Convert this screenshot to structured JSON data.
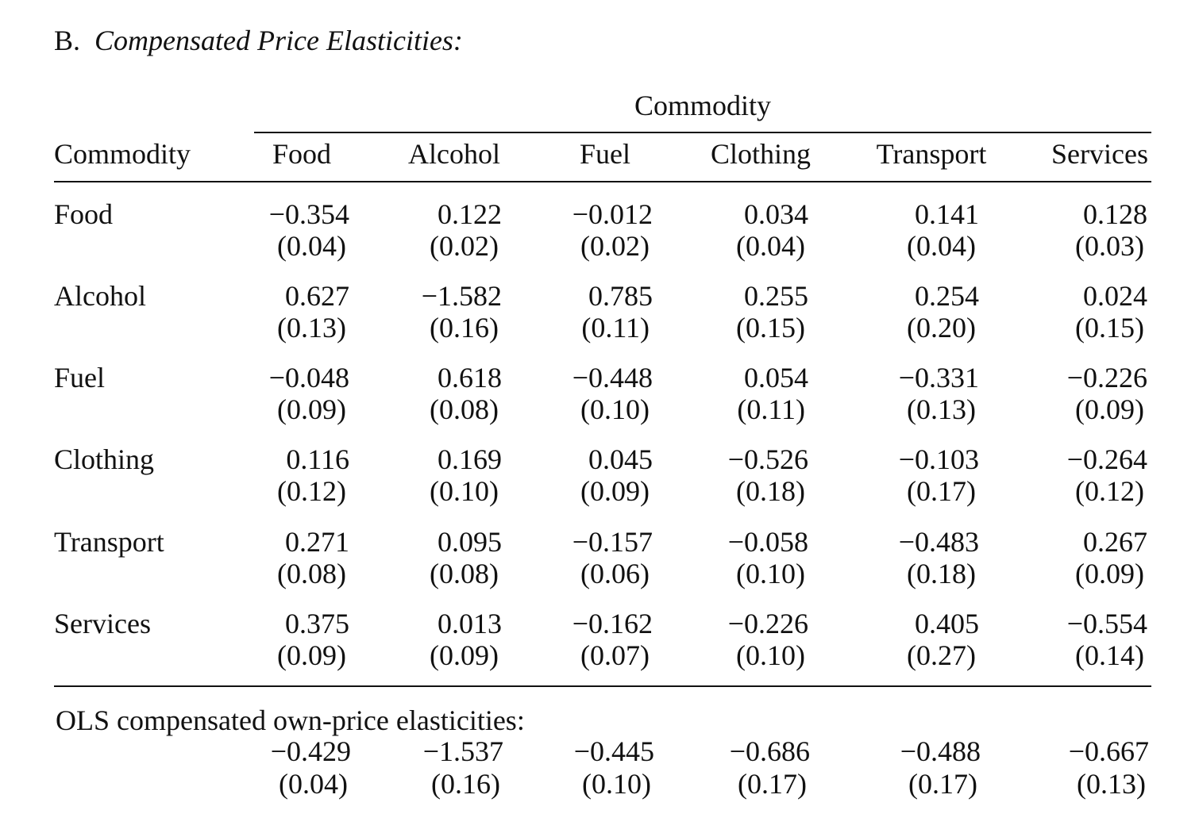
{
  "section_label": "B.",
  "section_title": "Compensated Price Elasticities:",
  "spanner_header": "Commodity",
  "row_header": "Commodity",
  "columns": [
    "Food",
    "Alcohol",
    "Fuel",
    "Clothing",
    "Transport",
    "Services"
  ],
  "rows": [
    {
      "label": "Food",
      "estimates": [
        "−0.354",
        "0.122",
        "−0.012",
        "0.034",
        "0.141",
        "0.128"
      ],
      "std_errors": [
        "(0.04)",
        "(0.02)",
        "(0.02)",
        "(0.04)",
        "(0.04)",
        "(0.03)"
      ]
    },
    {
      "label": "Alcohol",
      "estimates": [
        "0.627",
        "−1.582",
        "0.785",
        "0.255",
        "0.254",
        "0.024"
      ],
      "std_errors": [
        "(0.13)",
        "(0.16)",
        "(0.11)",
        "(0.15)",
        "(0.20)",
        "(0.15)"
      ]
    },
    {
      "label": "Fuel",
      "estimates": [
        "−0.048",
        "0.618",
        "−0.448",
        "0.054",
        "−0.331",
        "−0.226"
      ],
      "std_errors": [
        "(0.09)",
        "(0.08)",
        "(0.10)",
        "(0.11)",
        "(0.13)",
        "(0.09)"
      ]
    },
    {
      "label": "Clothing",
      "estimates": [
        "0.116",
        "0.169",
        "0.045",
        "−0.526",
        "−0.103",
        "−0.264"
      ],
      "std_errors": [
        "(0.12)",
        "(0.10)",
        "(0.09)",
        "(0.18)",
        "(0.17)",
        "(0.12)"
      ]
    },
    {
      "label": "Transport",
      "estimates": [
        "0.271",
        "0.095",
        "−0.157",
        "−0.058",
        "−0.483",
        "0.267"
      ],
      "std_errors": [
        "(0.08)",
        "(0.08)",
        "(0.06)",
        "(0.10)",
        "(0.18)",
        "(0.09)"
      ]
    },
    {
      "label": "Services",
      "estimates": [
        "0.375",
        "0.013",
        "−0.162",
        "−0.226",
        "0.405",
        "−0.554"
      ],
      "std_errors": [
        "(0.09)",
        "(0.09)",
        "(0.07)",
        "(0.10)",
        "(0.27)",
        "(0.14)"
      ]
    }
  ],
  "ols": {
    "label": "OLS compensated own-price elasticities:",
    "estimates": [
      "−0.429",
      "−1.537",
      "−0.445",
      "−0.686",
      "−0.488",
      "−0.667"
    ],
    "std_errors": [
      "(0.04)",
      "(0.16)",
      "(0.10)",
      "(0.17)",
      "(0.17)",
      "(0.13)"
    ]
  }
}
